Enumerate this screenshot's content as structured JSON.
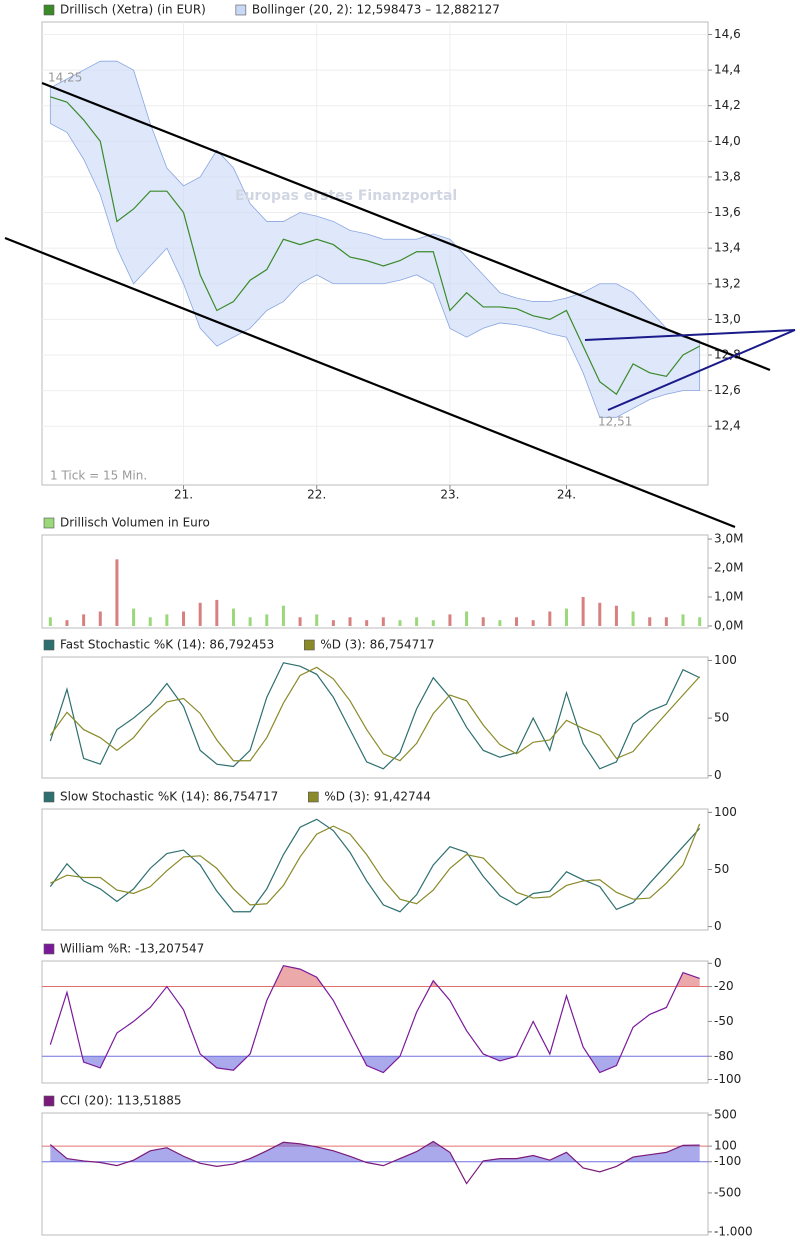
{
  "chart_data": [
    {
      "type": "line",
      "series": [
        {
          "name": "Drillisch (Xetra) (in EUR)",
          "color": "#3a8a2a",
          "values": [
            14.25,
            14.22,
            14.12,
            14.0,
            13.55,
            13.62,
            13.72,
            13.72,
            13.6,
            13.25,
            13.05,
            13.1,
            13.22,
            13.28,
            13.45,
            13.42,
            13.45,
            13.42,
            13.35,
            13.33,
            13.3,
            13.33,
            13.38,
            13.38,
            13.05,
            13.15,
            13.07,
            13.07,
            13.06,
            13.02,
            13.0,
            13.05,
            12.85,
            12.65,
            12.58,
            12.75,
            12.7,
            12.68,
            12.8,
            12.85
          ]
        }
      ],
      "bands": {
        "name": "Bollinger (20, 2): 12,598473 – 12,882127",
        "color": "#c9d8f6",
        "upper": [
          14.3,
          14.35,
          14.4,
          14.45,
          14.45,
          14.4,
          14.1,
          13.85,
          13.75,
          13.8,
          13.95,
          13.85,
          13.65,
          13.55,
          13.55,
          13.6,
          13.58,
          13.55,
          13.5,
          13.48,
          13.45,
          13.45,
          13.45,
          13.48,
          13.45,
          13.35,
          13.25,
          13.15,
          13.12,
          13.1,
          13.1,
          13.12,
          13.15,
          13.2,
          13.2,
          13.15,
          13.05,
          12.95,
          12.9,
          12.88
        ],
        "lower": [
          14.1,
          14.05,
          13.9,
          13.7,
          13.4,
          13.2,
          13.3,
          13.4,
          13.2,
          12.95,
          12.85,
          12.9,
          12.95,
          13.05,
          13.1,
          13.2,
          13.25,
          13.2,
          13.2,
          13.2,
          13.2,
          13.22,
          13.25,
          13.2,
          12.95,
          12.9,
          12.95,
          12.98,
          12.97,
          12.95,
          12.92,
          12.9,
          12.7,
          12.45,
          12.45,
          12.5,
          12.55,
          12.58,
          12.6,
          12.6
        ]
      },
      "categories": [
        null,
        null,
        null,
        null,
        null,
        null,
        null,
        null,
        "21.",
        null,
        null,
        null,
        null,
        null,
        null,
        null,
        "22.",
        null,
        null,
        null,
        null,
        null,
        null,
        null,
        "23.",
        null,
        null,
        null,
        null,
        null,
        null,
        "24.",
        null,
        null,
        null,
        null,
        null,
        null,
        null,
        null
      ],
      "ylim": [
        12.07,
        14.67
      ],
      "yticks": [
        {
          "value": 12.4,
          "label": "12,4"
        },
        {
          "value": 12.6,
          "label": "12,6"
        },
        {
          "value": 12.8,
          "label": "12,8"
        },
        {
          "value": 13.0,
          "label": "13,0"
        },
        {
          "value": 13.2,
          "label": "13,2"
        },
        {
          "value": 13.4,
          "label": "13,4"
        },
        {
          "value": 13.6,
          "label": "13,6"
        },
        {
          "value": 13.8,
          "label": "13,8"
        },
        {
          "value": 14.0,
          "label": "14,0"
        },
        {
          "value": 14.2,
          "label": "14,2"
        },
        {
          "value": 14.4,
          "label": "14,4"
        },
        {
          "value": 14.6,
          "label": "14,6"
        }
      ],
      "grid": true,
      "annotations": [
        "14,25",
        "12,51",
        "1 Tick = 15 Min.",
        "Europas erstes Finanzportal"
      ]
    },
    {
      "type": "bar",
      "series": [
        {
          "name": "Drillisch Volumen in Euro",
          "color": "#9ad87a",
          "values": [
            300000,
            200000,
            400000,
            500000,
            2300000,
            600000,
            300000,
            400000,
            500000,
            800000,
            900000,
            600000,
            300000,
            400000,
            700000,
            300000,
            400000,
            200000,
            300000,
            200000,
            300000,
            200000,
            300000,
            200000,
            400000,
            500000,
            300000,
            200000,
            300000,
            200000,
            500000,
            600000,
            1000000,
            800000,
            700000,
            500000,
            300000,
            300000,
            400000,
            300000
          ]
        }
      ],
      "up_color": "#9ad87a",
      "down_color": "#d88080",
      "ylim": [
        -70000,
        3140000
      ],
      "yticks": [
        {
          "value": 0,
          "label": "0,0M"
        },
        {
          "value": 1000000,
          "label": "1,0M"
        },
        {
          "value": 2000000,
          "label": "2,0M"
        },
        {
          "value": 3000000,
          "label": "3,0M"
        }
      ]
    },
    {
      "type": "line",
      "series": [
        {
          "name": "Fast Stochastic %K (14): 86,792453",
          "color": "#2f6f6f",
          "values": [
            30,
            75,
            15,
            10,
            40,
            50,
            62,
            80,
            60,
            22,
            10,
            8,
            22,
            68,
            98,
            95,
            88,
            68,
            40,
            12,
            6,
            20,
            58,
            85,
            68,
            42,
            22,
            16,
            20,
            50,
            22,
            72,
            28,
            6,
            12,
            45,
            56,
            62,
            92,
            85
          ]
        },
        {
          "name": "%D (3): 86,754717",
          "color": "#8a8a2a",
          "values": [
            35,
            55,
            40,
            33,
            22,
            33,
            51,
            64,
            67,
            54,
            31,
            13,
            13,
            33,
            63,
            87,
            94,
            84,
            65,
            40,
            19,
            13,
            28,
            54,
            70,
            65,
            44,
            27,
            19,
            29,
            31,
            48,
            41,
            35,
            15,
            21,
            38,
            54,
            70,
            86
          ]
        }
      ],
      "ylim": [
        -2,
        103
      ],
      "yticks": [
        0,
        50,
        100
      ]
    },
    {
      "type": "line",
      "series": [
        {
          "name": "Slow Stochastic %K (14): 86,754717",
          "color": "#2f6f6f",
          "values": [
            35,
            55,
            40,
            33,
            22,
            33,
            51,
            64,
            67,
            54,
            31,
            13,
            13,
            33,
            63,
            87,
            94,
            84,
            65,
            40,
            19,
            13,
            28,
            54,
            70,
            65,
            44,
            27,
            19,
            29,
            31,
            48,
            41,
            35,
            15,
            21,
            38,
            54,
            70,
            86
          ]
        },
        {
          "name": "%D (3): 91,42744",
          "color": "#8a8a2a",
          "values": [
            38,
            45,
            43,
            43,
            32,
            29,
            35,
            49,
            61,
            62,
            51,
            33,
            19,
            20,
            36,
            61,
            81,
            88,
            81,
            63,
            41,
            24,
            20,
            32,
            51,
            63,
            60,
            45,
            30,
            25,
            26,
            36,
            40,
            41,
            30,
            24,
            25,
            38,
            54,
            90
          ]
        }
      ],
      "ylim": [
        -3,
        103
      ],
      "yticks": [
        0,
        50,
        100
      ]
    },
    {
      "type": "line",
      "series": [
        {
          "name": "William %R: -13,207547",
          "color": "#7a1a9a",
          "values": [
            -70,
            -25,
            -85,
            -90,
            -60,
            -50,
            -38,
            -20,
            -40,
            -78,
            -90,
            -92,
            -78,
            -32,
            -2,
            -5,
            -12,
            -32,
            -60,
            -88,
            -94,
            -80,
            -42,
            -15,
            -32,
            -58,
            -78,
            -84,
            -80,
            -50,
            -78,
            -28,
            -72,
            -94,
            -88,
            -55,
            -44,
            -38,
            -8,
            -13
          ]
        }
      ],
      "reference_lines": [
        {
          "value": -20,
          "color": "#e07070"
        },
        {
          "value": -80,
          "color": "#7070e0"
        }
      ],
      "ylim": [
        -103,
        2
      ],
      "yticks": [
        0,
        -20,
        -50,
        -80,
        -100
      ]
    },
    {
      "type": "line",
      "series": [
        {
          "name": "CCI (20): 113,51885",
          "color": "#7a1a7a",
          "values": [
            120,
            -60,
            -90,
            -110,
            -150,
            -80,
            40,
            80,
            -30,
            -120,
            -160,
            -130,
            -60,
            40,
            150,
            130,
            90,
            40,
            -30,
            -110,
            -150,
            -60,
            30,
            160,
            20,
            -380,
            -90,
            -60,
            -60,
            -20,
            -80,
            20,
            -180,
            -230,
            -160,
            -40,
            -10,
            20,
            110,
            114
          ]
        }
      ],
      "reference_lines": [
        {
          "value": 100,
          "color": "#e07070"
        },
        {
          "value": -100,
          "color": "#7070e0"
        }
      ],
      "ylim": [
        -1040,
        525
      ],
      "yticks": [
        500,
        100,
        -100,
        -500,
        {
          "value": -1000,
          "label": "-1.000"
        }
      ]
    }
  ]
}
